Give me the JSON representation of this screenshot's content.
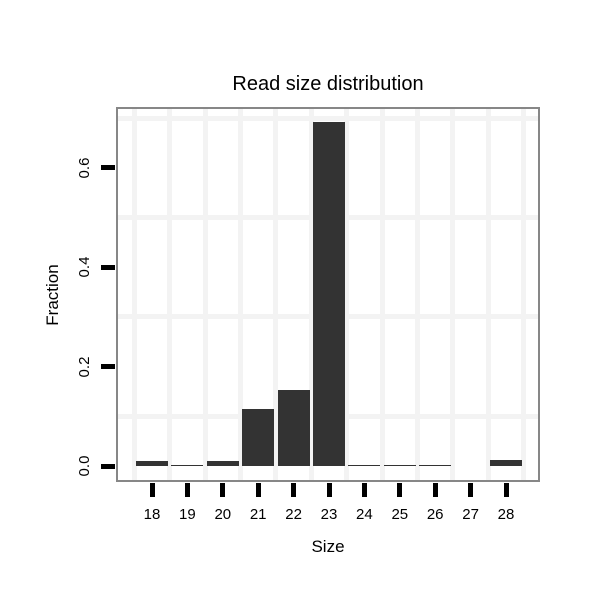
{
  "chart_data": {
    "type": "bar",
    "title": "Read size distribution",
    "xlabel": "Size",
    "ylabel": "Fraction",
    "categories": [
      18,
      19,
      20,
      21,
      22,
      23,
      24,
      25,
      26,
      27,
      28
    ],
    "values": [
      0.01,
      0.003,
      0.01,
      0.114,
      0.153,
      0.692,
      0.003,
      0.003,
      0.003,
      0.0,
      0.012
    ],
    "ylim": [
      -0.03,
      0.72
    ],
    "yticks": [
      0.0,
      0.2,
      0.4,
      0.6
    ],
    "ytick_labels": [
      "0.0",
      "0.2",
      "0.4",
      "0.6"
    ],
    "grid_h_lines": [
      0.1,
      0.3,
      0.5,
      0.7
    ],
    "grid_v_boundaries": [
      17.5,
      18.5,
      19.5,
      20.5,
      21.5,
      22.5,
      23.5,
      24.5,
      25.5,
      26.5,
      27.5,
      28.5
    ],
    "legend_position": "none"
  },
  "colors": {
    "bar_fill": "#333333",
    "gridline": "#f3f3f3",
    "panel_border": "#878787",
    "tick": "#000000",
    "text": "#000000",
    "background": "#ffffff"
  }
}
